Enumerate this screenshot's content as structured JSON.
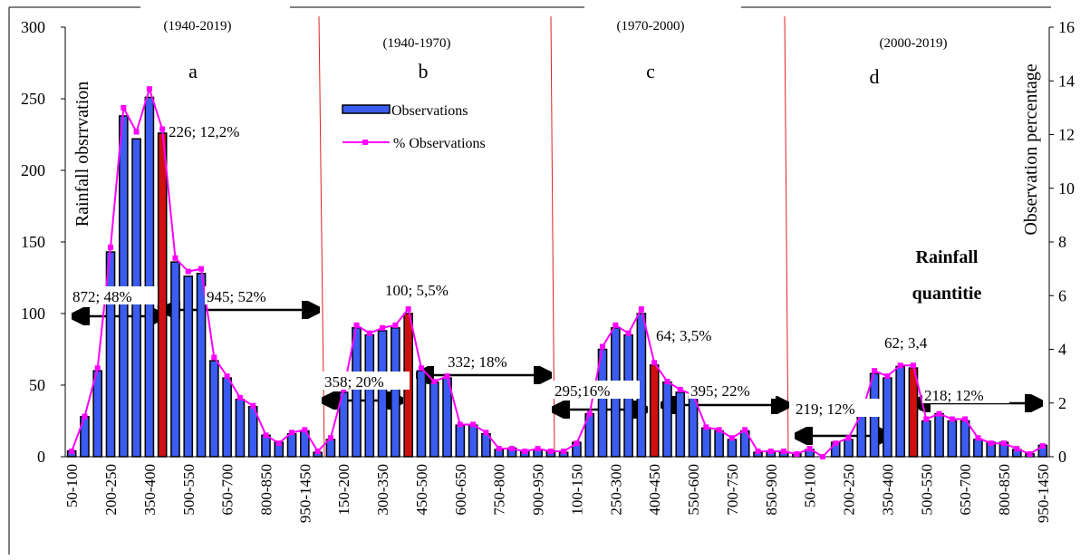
{
  "chart_data": {
    "type": "bar",
    "y_label": "Rainfall obsrrvation",
    "y2_label": "Observation percentage",
    "x_label": [
      "Rainfall",
      "quantitie"
    ],
    "panels": [
      {
        "period": "(1940-2019)",
        "letter": "a"
      },
      {
        "period": "(1940-1970)",
        "letter": "b"
      },
      {
        "period": "(1970-2000)",
        "letter": "c"
      },
      {
        "period": "(2000-2019)",
        "letter": "d"
      }
    ],
    "categories": [
      "50-100",
      null,
      null,
      "200-250",
      null,
      null,
      "350-400",
      null,
      null,
      "500-550",
      null,
      null,
      "650-700",
      null,
      null,
      "800-850",
      null,
      null,
      "950-1450",
      null,
      null,
      "150-200",
      null,
      null,
      "300-350",
      null,
      null,
      "450-500",
      null,
      null,
      "600-650",
      null,
      null,
      "750-800",
      null,
      null,
      "900-950",
      null,
      null,
      "100-150",
      null,
      null,
      "250-300",
      null,
      null,
      "400-450",
      null,
      null,
      "550-600",
      null,
      null,
      "700-750",
      null,
      null,
      "850-900",
      null,
      null,
      "50-100",
      null,
      null,
      "200-250",
      null,
      null,
      "350-400",
      null,
      null,
      "500-550",
      null,
      null,
      "650-700",
      null,
      null,
      "800-850",
      null,
      null,
      "950-1450"
    ],
    "series": [
      {
        "name": "Observations",
        "color": "#3a5cf0",
        "highlight_color": "#d01010",
        "values": [
          4,
          28,
          60,
          143,
          238,
          222,
          251,
          226,
          136,
          126,
          128,
          67,
          55,
          40,
          35,
          15,
          10,
          16,
          18,
          3,
          12,
          45,
          90,
          85,
          88,
          90,
          100,
          60,
          52,
          55,
          22,
          22,
          16,
          5,
          6,
          4,
          5,
          4,
          3,
          10,
          30,
          75,
          90,
          85,
          100,
          64,
          52,
          45,
          42,
          20,
          18,
          12,
          18,
          3,
          4,
          3,
          2,
          5,
          0,
          10,
          12,
          30,
          58,
          55,
          63,
          62,
          25,
          30,
          25,
          25,
          12,
          10,
          10,
          5,
          2,
          8
        ],
        "highlighted": [
          false,
          false,
          false,
          false,
          false,
          false,
          false,
          true,
          false,
          false,
          false,
          false,
          false,
          false,
          false,
          false,
          false,
          false,
          false,
          false,
          false,
          false,
          false,
          false,
          false,
          false,
          true,
          false,
          false,
          false,
          false,
          false,
          false,
          false,
          false,
          false,
          false,
          false,
          false,
          false,
          false,
          false,
          false,
          false,
          false,
          true,
          false,
          false,
          false,
          false,
          false,
          false,
          false,
          false,
          false,
          false,
          false,
          false,
          false,
          false,
          false,
          false,
          false,
          false,
          false,
          true,
          false,
          false,
          false,
          false,
          false,
          false,
          false,
          false,
          false,
          false
        ]
      },
      {
        "name": "% Observations",
        "color": "#ff00ff",
        "type": "line",
        "axis": "y2",
        "values": [
          0.2,
          1.5,
          3.3,
          7.8,
          13.0,
          12.1,
          13.7,
          12.2,
          7.4,
          6.9,
          7.0,
          3.7,
          3.0,
          2.2,
          1.9,
          0.8,
          0.5,
          0.9,
          1.0,
          0.2,
          0.7,
          2.5,
          4.9,
          4.6,
          4.8,
          4.9,
          5.5,
          3.3,
          2.8,
          3.0,
          1.2,
          1.2,
          0.9,
          0.3,
          0.3,
          0.2,
          0.3,
          0.2,
          0.2,
          0.5,
          1.6,
          4.1,
          4.9,
          4.6,
          5.5,
          3.5,
          2.8,
          2.5,
          2.3,
          1.1,
          1.0,
          0.7,
          1.0,
          0.2,
          0.2,
          0.2,
          0.1,
          0.3,
          0.0,
          0.5,
          0.7,
          1.6,
          3.2,
          3.0,
          3.4,
          3.4,
          1.4,
          1.6,
          1.4,
          1.4,
          0.7,
          0.5,
          0.5,
          0.3,
          0.1,
          0.4
        ]
      }
    ],
    "ylim": [
      0,
      300
    ],
    "yticks": [
      0,
      50,
      100,
      150,
      200,
      250,
      300
    ],
    "y2lim": [
      0,
      16
    ],
    "y2ticks": [
      0,
      2,
      4,
      6,
      8,
      10,
      12,
      14,
      16
    ],
    "annotations": [
      {
        "text": "226; 12,2%",
        "color": "#e01010"
      },
      {
        "text": "100; 5,5%",
        "color": "#e01010"
      },
      {
        "text": "64; 3,5%",
        "color": "#e01010"
      },
      {
        "text": "62; 3,4",
        "color": "#e01010"
      },
      {
        "text": "872; 48%",
        "color": "#2030e0"
      },
      {
        "text": "945; 52%",
        "color": "#e010e0"
      },
      {
        "text": "358; 20%",
        "color": "#2030e0"
      },
      {
        "text": "332; 18%",
        "color": "#e010e0"
      },
      {
        "text": "295;16%",
        "color": "#2030e0"
      },
      {
        "text": "395; 22%",
        "color": "#e010e0"
      },
      {
        "text": "219; 12%",
        "color": "#2030e0"
      },
      {
        "text": "218; 12%",
        "color": "#e010e0"
      }
    ]
  }
}
